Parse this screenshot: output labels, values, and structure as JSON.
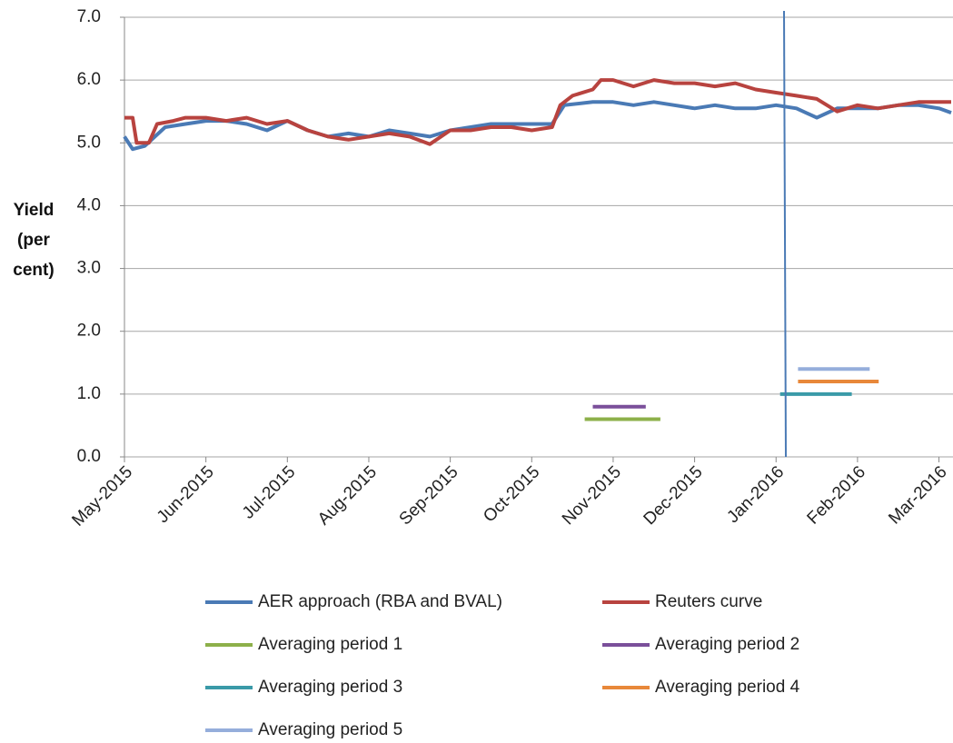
{
  "chart_data": {
    "type": "line",
    "ylabel": "Yield (per cent)",
    "xlim": [
      0,
      10.15
    ],
    "xticks": [
      {
        "value": 0,
        "label": "May-2015"
      },
      {
        "value": 1,
        "label": "Jun-2015"
      },
      {
        "value": 2,
        "label": "Jul-2015"
      },
      {
        "value": 3,
        "label": "Aug-2015"
      },
      {
        "value": 4,
        "label": "Sep-2015"
      },
      {
        "value": 5,
        "label": "Oct-2015"
      },
      {
        "value": 6,
        "label": "Nov-2015"
      },
      {
        "value": 7,
        "label": "Dec-2015"
      },
      {
        "value": 8,
        "label": "Jan-2016"
      },
      {
        "value": 9,
        "label": "Feb-2016"
      },
      {
        "value": 10,
        "label": "Mar-2016"
      }
    ],
    "ylim": [
      0,
      7
    ],
    "yticks": [
      {
        "value": 0,
        "label": "0.0"
      },
      {
        "value": 1,
        "label": "1.0"
      },
      {
        "value": 2,
        "label": "2.0"
      },
      {
        "value": 3,
        "label": "3.0"
      },
      {
        "value": 4,
        "label": "4.0"
      },
      {
        "value": 5,
        "label": "5.0"
      },
      {
        "value": 6,
        "label": "6.0"
      },
      {
        "value": 7,
        "label": "7.0"
      }
    ],
    "grid": true,
    "vertical_line": {
      "x": 8.12,
      "color": "#4a7ab5"
    },
    "series": [
      {
        "name": "AER approach (RBA and BVAL)",
        "color": "#4a7ab5",
        "x": [
          0,
          0.1,
          0.25,
          0.5,
          0.75,
          1,
          1.25,
          1.5,
          1.75,
          2,
          2.25,
          2.5,
          2.75,
          3,
          3.25,
          3.5,
          3.75,
          4,
          4.25,
          4.5,
          4.75,
          5,
          5.25,
          5.4,
          5.75,
          6,
          6.25,
          6.5,
          6.75,
          7,
          7.25,
          7.5,
          7.75,
          8,
          8.25,
          8.5,
          8.75,
          9,
          9.25,
          9.5,
          9.75,
          10,
          10.15
        ],
        "values": [
          5.1,
          4.9,
          4.95,
          5.25,
          5.3,
          5.35,
          5.35,
          5.3,
          5.2,
          5.35,
          5.2,
          5.1,
          5.15,
          5.1,
          5.2,
          5.15,
          5.1,
          5.2,
          5.25,
          5.3,
          5.3,
          5.3,
          5.3,
          5.6,
          5.65,
          5.65,
          5.6,
          5.65,
          5.6,
          5.55,
          5.6,
          5.55,
          5.55,
          5.6,
          5.55,
          5.4,
          5.55,
          5.55,
          5.55,
          5.6,
          5.6,
          5.55,
          5.48
        ]
      },
      {
        "name": "Reuters curve",
        "color": "#b8433f",
        "x": [
          0,
          0.1,
          0.15,
          0.3,
          0.4,
          0.6,
          0.75,
          1,
          1.25,
          1.5,
          1.75,
          2,
          2.25,
          2.5,
          2.75,
          3,
          3.25,
          3.5,
          3.75,
          4,
          4.25,
          4.5,
          4.75,
          5,
          5.25,
          5.35,
          5.5,
          5.75,
          5.85,
          6,
          6.25,
          6.5,
          6.75,
          7,
          7.25,
          7.5,
          7.75,
          8,
          8.25,
          8.5,
          8.75,
          9,
          9.25,
          9.5,
          9.75,
          10,
          10.15
        ],
        "values": [
          5.4,
          5.4,
          5.0,
          5.0,
          5.3,
          5.35,
          5.4,
          5.4,
          5.35,
          5.4,
          5.3,
          5.35,
          5.2,
          5.1,
          5.05,
          5.1,
          5.15,
          5.1,
          4.98,
          5.2,
          5.2,
          5.25,
          5.25,
          5.2,
          5.25,
          5.6,
          5.75,
          5.85,
          6.0,
          6.0,
          5.9,
          6.0,
          5.95,
          5.95,
          5.9,
          5.95,
          5.85,
          5.8,
          5.75,
          5.7,
          5.5,
          5.6,
          5.55,
          5.6,
          5.65,
          5.65,
          5.65
        ]
      },
      {
        "name": "Averaging period 1",
        "color": "#8db04a",
        "x": [
          5.65,
          6.58
        ],
        "values": [
          0.6,
          0.6
        ]
      },
      {
        "name": "Averaging period 2",
        "color": "#7a4f9a",
        "x": [
          5.75,
          6.4
        ],
        "values": [
          0.8,
          0.8
        ]
      },
      {
        "name": "Averaging period 3",
        "color": "#3a9aa8",
        "x": [
          8.05,
          8.93
        ],
        "values": [
          1.0,
          1.0
        ]
      },
      {
        "name": "Averaging period 4",
        "color": "#e8883a",
        "x": [
          8.27,
          9.26
        ],
        "values": [
          1.2,
          1.2
        ]
      },
      {
        "name": "Averaging period 5",
        "color": "#95aedb",
        "x": [
          8.27,
          9.15
        ],
        "values": [
          1.4,
          1.4
        ]
      }
    ]
  }
}
